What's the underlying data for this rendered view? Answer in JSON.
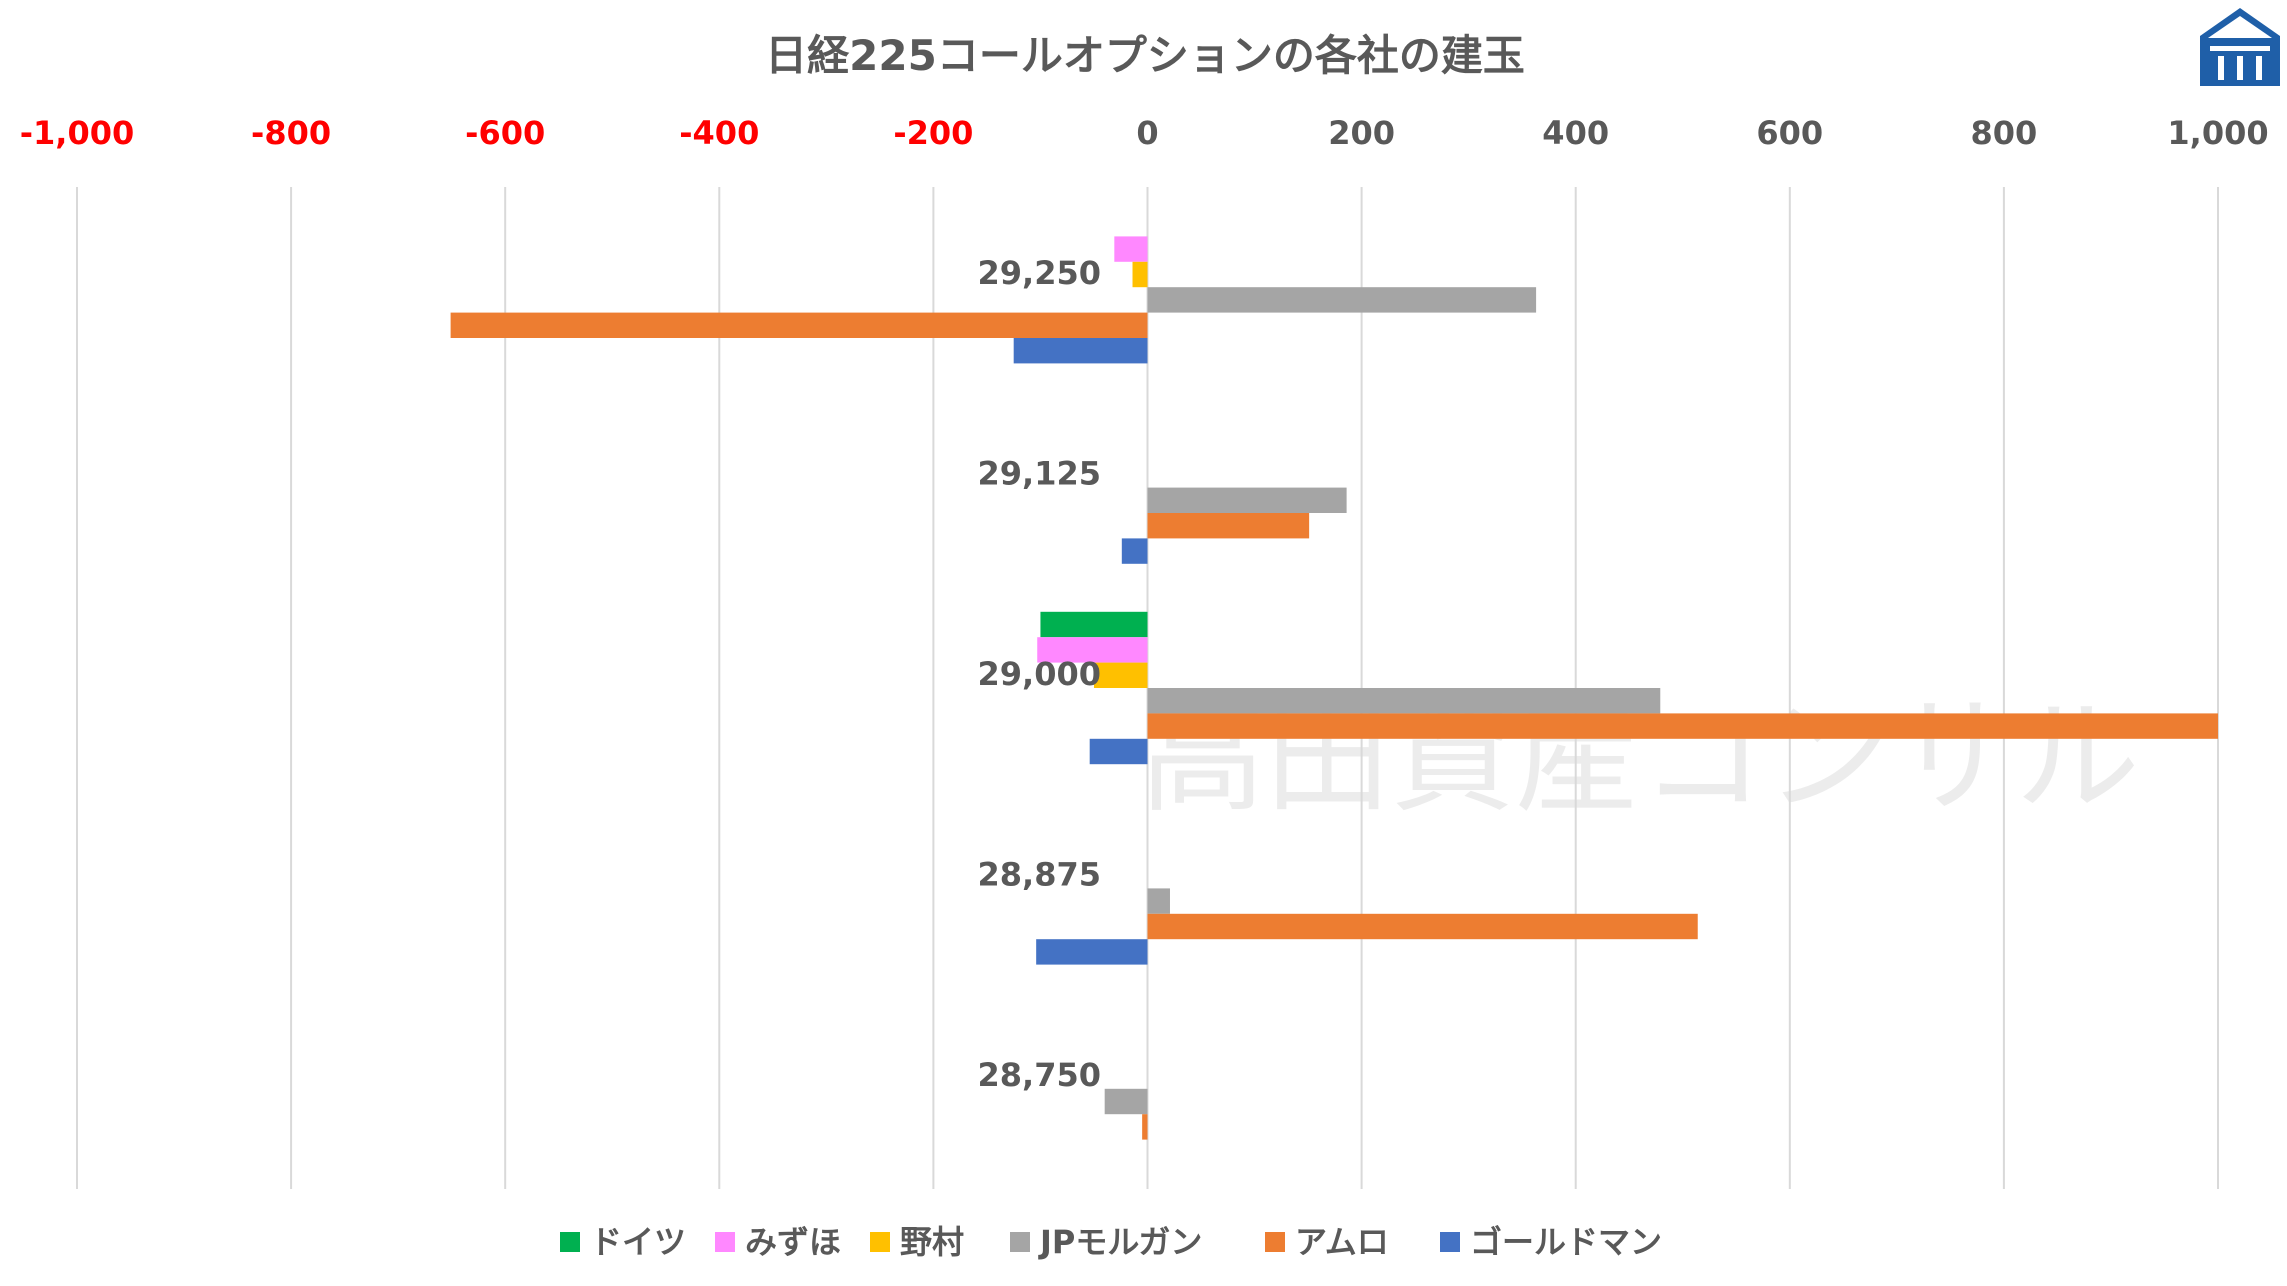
{
  "chart_data": {
    "type": "bar",
    "orientation": "horizontal",
    "title": "日経225コールオプションの各社の建玉",
    "xlabel": "",
    "ylabel": "",
    "xlim": [
      -1000,
      1000
    ],
    "xticks": [
      -1000,
      -800,
      -600,
      -400,
      -200,
      0,
      200,
      400,
      600,
      800,
      1000
    ],
    "xtick_labels": [
      "-1,000",
      "-800",
      "-600",
      "-400",
      "-200",
      "0",
      "200",
      "400",
      "600",
      "800",
      "1,000"
    ],
    "negative_tick_color": "#FF0000",
    "positive_tick_color": "#595959",
    "grid": true,
    "legend_position": "bottom",
    "categories": [
      "29,250",
      "29,125",
      "29,000",
      "28,875",
      "28,750"
    ],
    "series": [
      {
        "name": "ドイツ",
        "color": "#00B050",
        "values": [
          0,
          0,
          -100,
          0,
          0
        ]
      },
      {
        "name": "みずほ",
        "color": "#FF88FF",
        "values": [
          -31,
          0,
          -103,
          0,
          0
        ]
      },
      {
        "name": "野村",
        "color": "#FFC000",
        "values": [
          -14,
          0,
          -50,
          0,
          0
        ]
      },
      {
        "name": "JPモルガン",
        "color": "#A5A5A5",
        "values": [
          363,
          186,
          479,
          21,
          -40
        ]
      },
      {
        "name": "アムロ",
        "color": "#ED7D31",
        "values": [
          -651,
          151,
          1000,
          514,
          -5
        ]
      },
      {
        "name": "ゴールドマン",
        "color": "#4472C4",
        "values": [
          -125,
          -24,
          -54,
          -104,
          0
        ]
      }
    ]
  },
  "watermark": "高田資産コンサル",
  "logo_color": "#1F5FA8"
}
